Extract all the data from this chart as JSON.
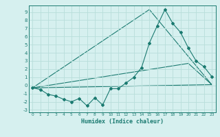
{
  "xlabel": "Humidex (Indice chaleur)",
  "ylabel": "",
  "background_color": "#d6f0ef",
  "grid_color": "#b8deda",
  "line_color": "#1a7a70",
  "xlim": [
    -0.5,
    23.5
  ],
  "ylim": [
    -3.3,
    9.8
  ],
  "xticks": [
    0,
    1,
    2,
    3,
    4,
    5,
    6,
    7,
    8,
    9,
    10,
    11,
    12,
    13,
    14,
    15,
    16,
    17,
    18,
    19,
    20,
    21,
    22,
    23
  ],
  "yticks": [
    -3,
    -2,
    -1,
    0,
    1,
    2,
    3,
    4,
    5,
    6,
    7,
    8,
    9
  ],
  "series1_x": [
    0,
    1,
    2,
    3,
    4,
    5,
    6,
    7,
    8,
    9,
    10,
    11,
    12,
    13,
    14,
    15,
    16,
    17,
    18,
    19,
    20,
    21,
    22,
    23
  ],
  "series1_y": [
    -0.3,
    -0.5,
    -1.1,
    -1.3,
    -1.7,
    -2.0,
    -1.6,
    -2.5,
    -1.5,
    -2.4,
    -0.4,
    -0.4,
    0.3,
    1.0,
    2.2,
    5.2,
    7.3,
    9.3,
    7.6,
    6.5,
    4.6,
    3.0,
    2.3,
    1.1
  ],
  "series2_x": [
    0,
    23
  ],
  "series2_y": [
    -0.3,
    0.1
  ],
  "series3_x": [
    0,
    15,
    23
  ],
  "series3_y": [
    -0.3,
    9.3,
    0.1
  ],
  "series4_x": [
    0,
    20,
    23
  ],
  "series4_y": [
    -0.3,
    2.7,
    0.1
  ]
}
